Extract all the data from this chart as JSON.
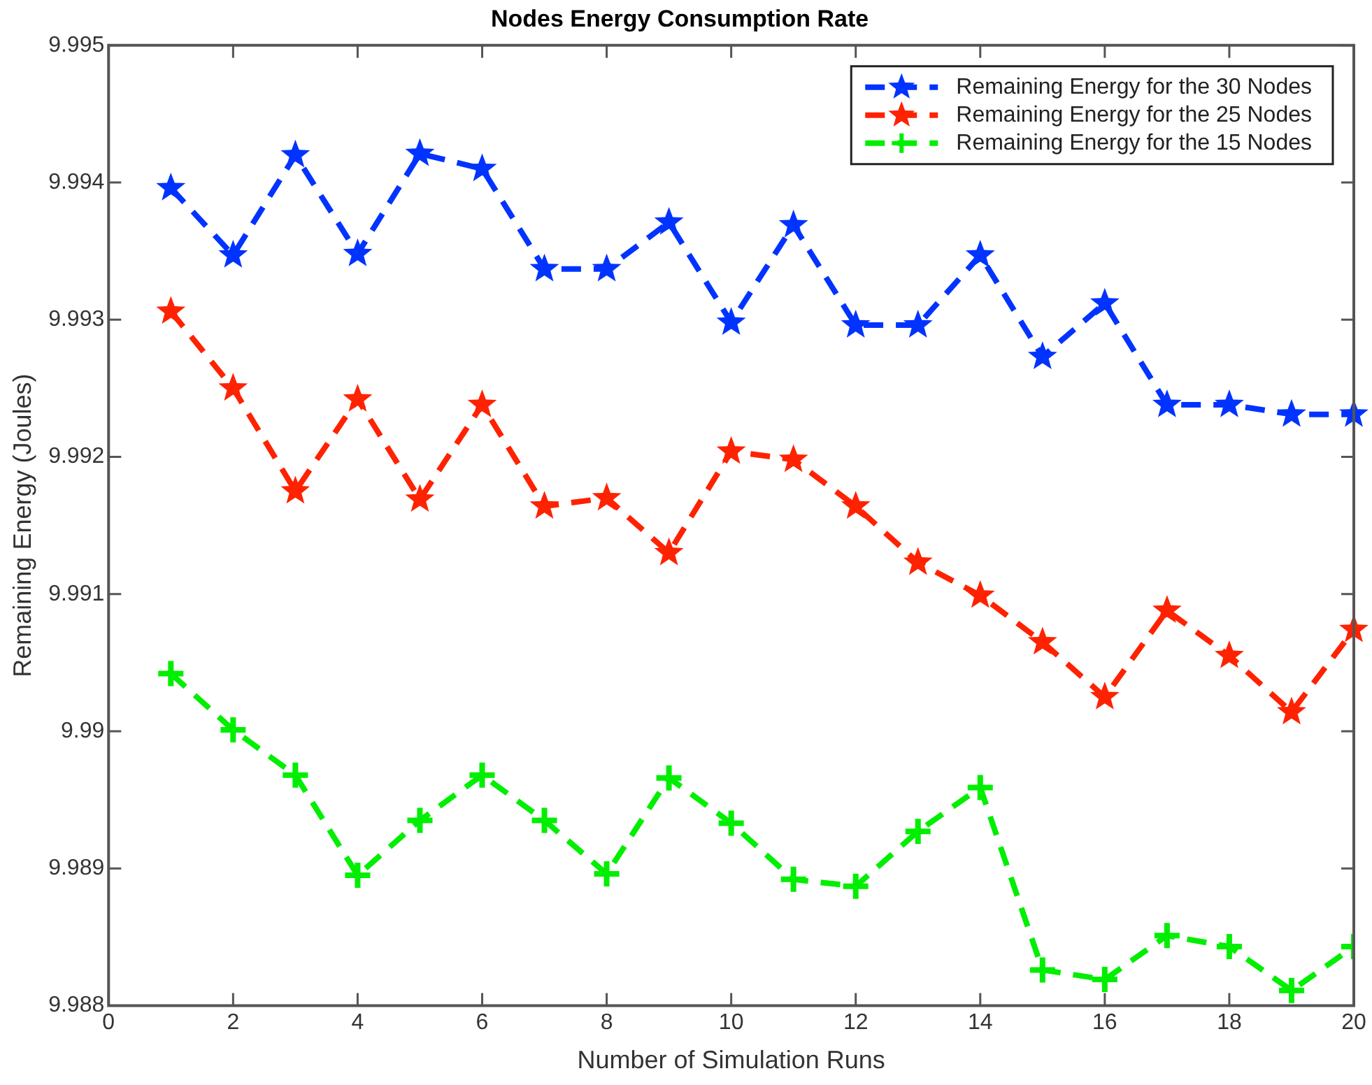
{
  "chart_data": {
    "type": "line",
    "title": "Nodes Energy Consumption Rate",
    "xlabel": "Number of Simulation Runs",
    "ylabel": "Remaining Energy (Joules)",
    "x": [
      1,
      2,
      3,
      4,
      5,
      6,
      7,
      8,
      9,
      10,
      11,
      12,
      13,
      14,
      15,
      16,
      17,
      18,
      19,
      20
    ],
    "series": [
      {
        "name": "Remaining Energy for the 30 Nodes",
        "color": "#0033ff",
        "marker": "star",
        "values": [
          9.99396,
          9.99347,
          9.9942,
          9.99348,
          9.99421,
          9.9941,
          9.99337,
          9.99337,
          9.99371,
          9.99298,
          9.99369,
          9.99296,
          9.99296,
          9.99347,
          9.99273,
          9.99312,
          9.99238,
          9.99238,
          9.99231,
          9.99231
        ]
      },
      {
        "name": "Remaining Energy for the 25 Nodes",
        "color": "#ff2200",
        "marker": "star",
        "values": [
          9.99306,
          9.9925,
          9.99175,
          9.99242,
          9.99169,
          9.99238,
          9.99164,
          9.9917,
          9.9913,
          9.99204,
          9.99198,
          9.99164,
          9.99123,
          9.99099,
          9.99065,
          9.99025,
          9.99088,
          9.99055,
          9.99014,
          9.99074
        ]
      },
      {
        "name": "Remaining Energy for the 15 Nodes",
        "color": "#00ee00",
        "marker": "cross",
        "values": [
          9.99042,
          9.99001,
          9.98968,
          9.98895,
          9.98935,
          9.98968,
          9.98935,
          9.98896,
          9.98966,
          9.98933,
          9.98892,
          9.98887,
          9.98927,
          9.98959,
          9.98826,
          9.98819,
          9.98851,
          9.98843,
          9.98811,
          9.98843
        ]
      }
    ],
    "xlim": [
      0,
      20
    ],
    "xticks": [
      0,
      2,
      4,
      6,
      8,
      10,
      12,
      14,
      16,
      18,
      20
    ],
    "ylim": [
      9.988,
      9.995
    ],
    "yticks": [
      9.988,
      9.989,
      9.99,
      9.991,
      9.992,
      9.993,
      9.994,
      9.995
    ],
    "grid": false,
    "legend": "top right",
    "line_style": "dashed"
  }
}
